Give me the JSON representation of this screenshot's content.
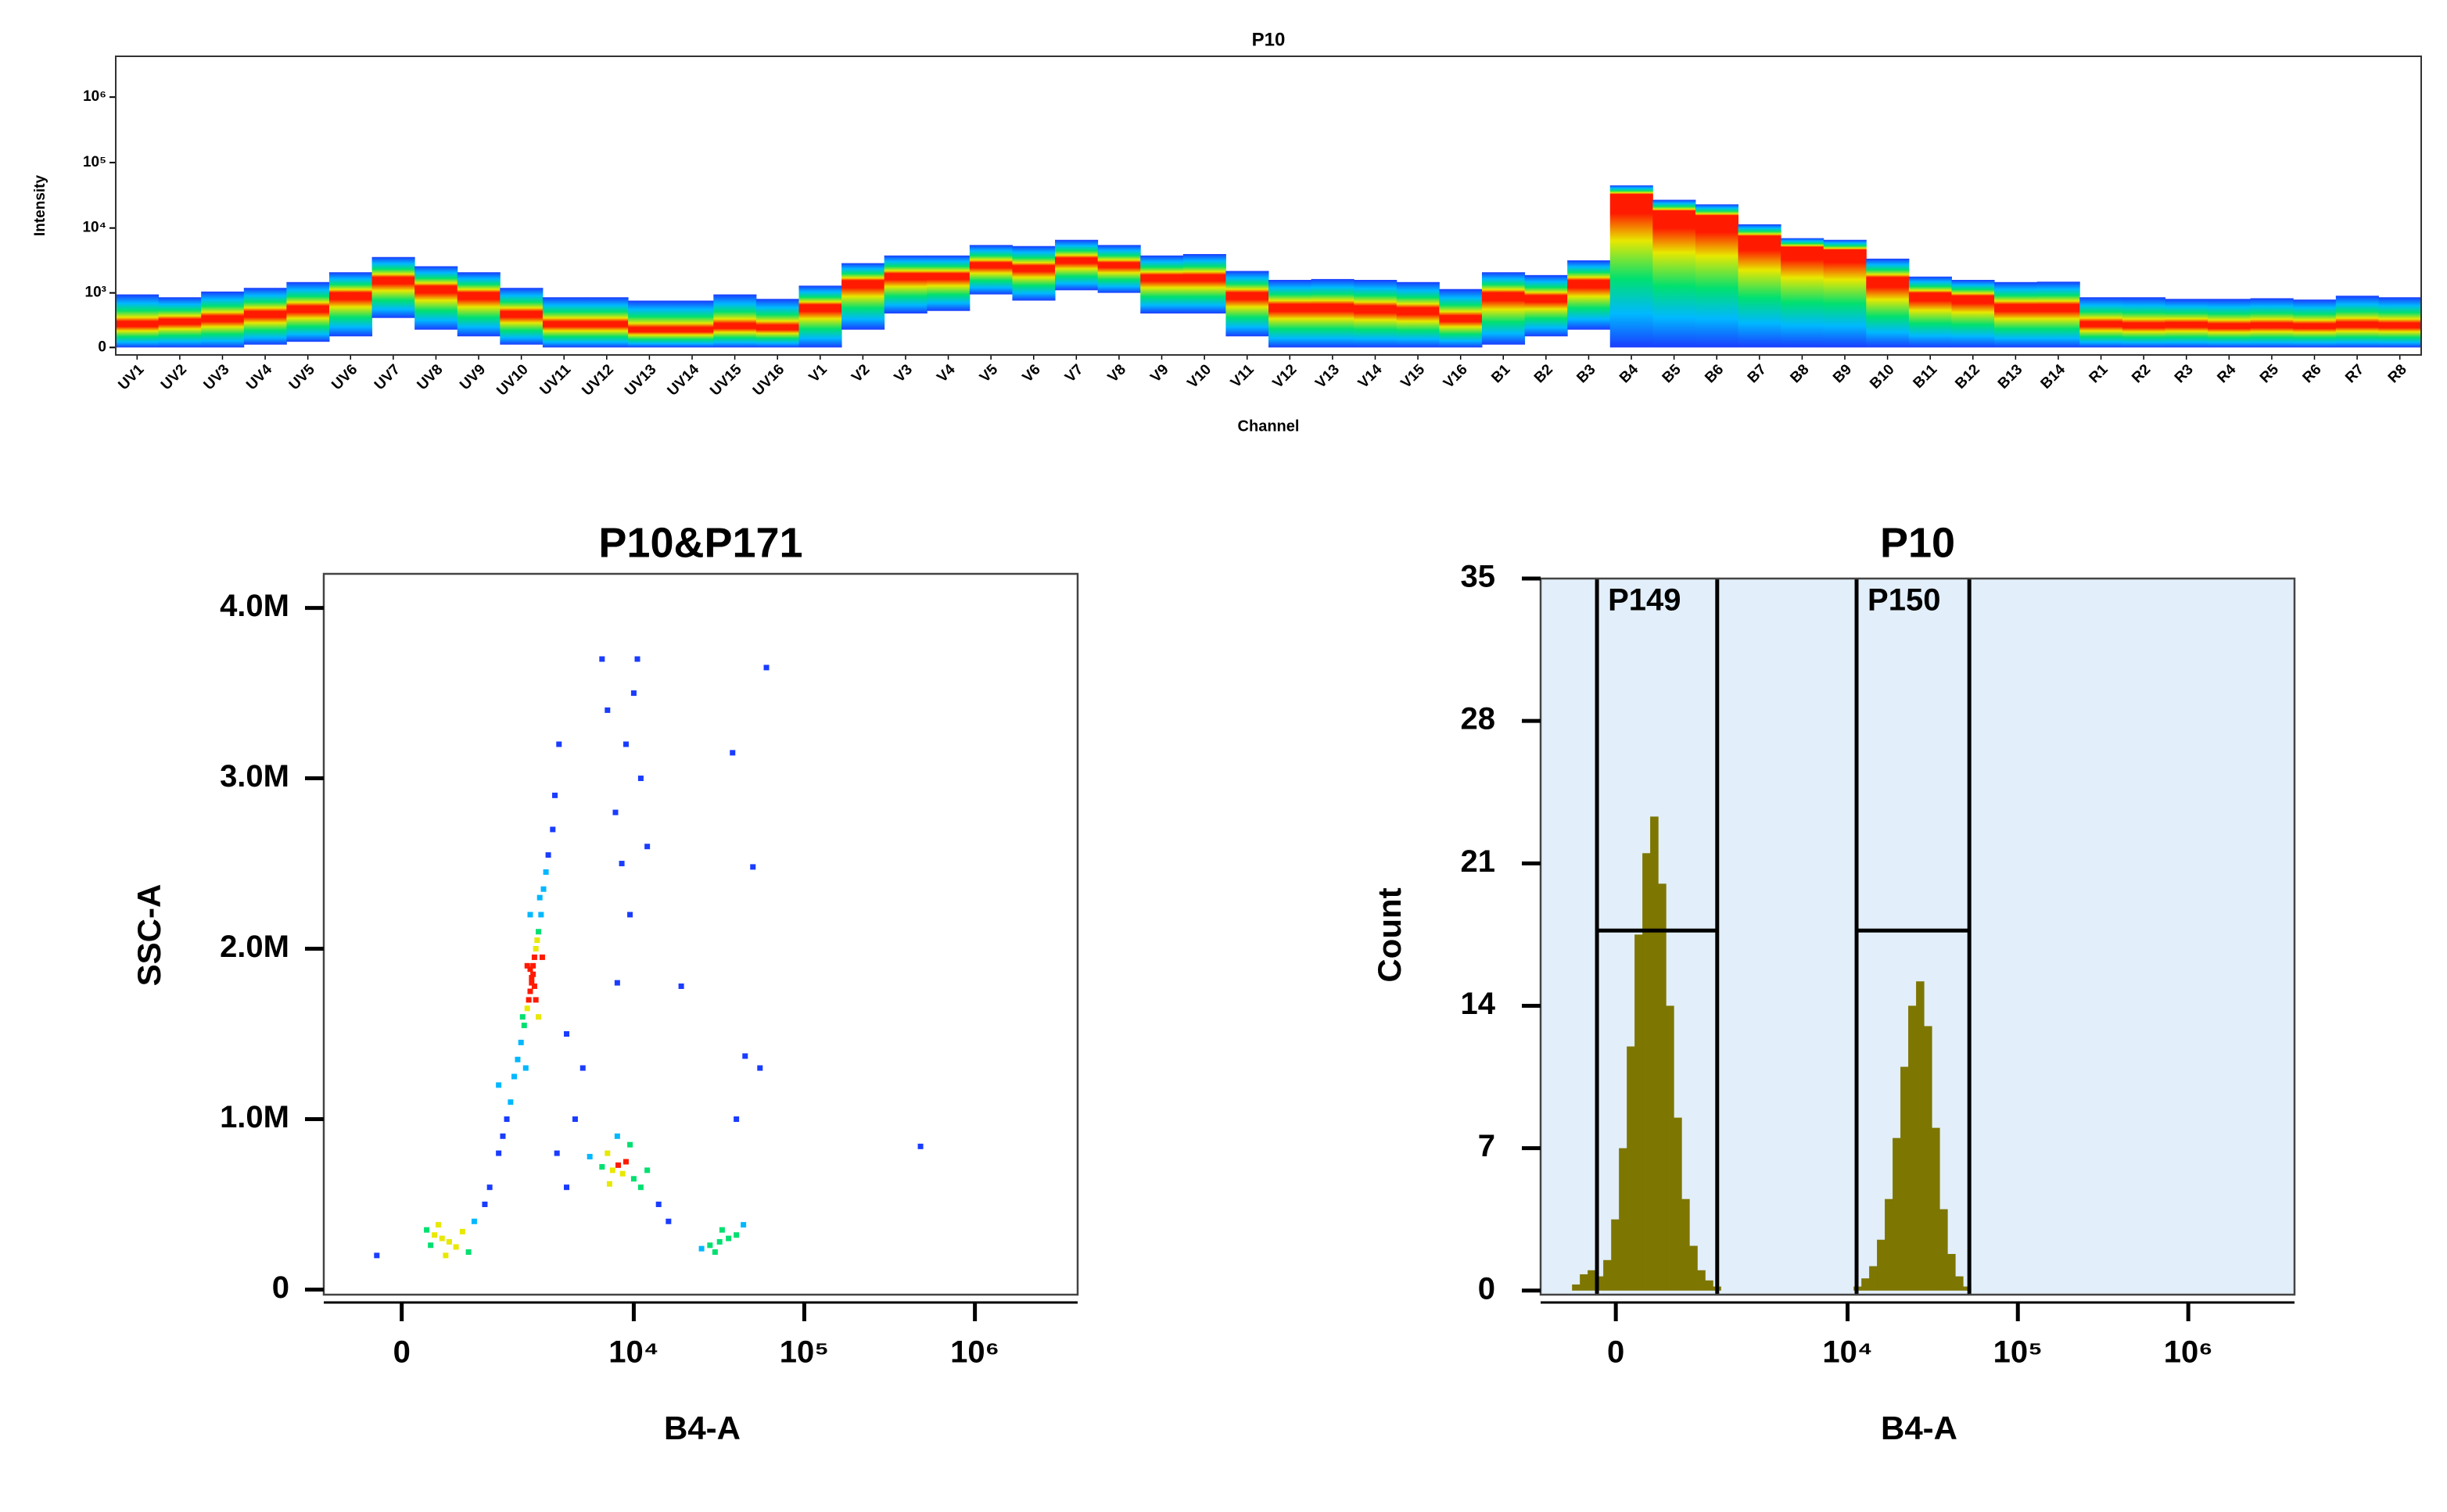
{
  "chart_data": [
    {
      "type": "spectrum",
      "title": "P10",
      "x_label": "Channel",
      "y_label": "Intensity",
      "categories": [
        "UV1",
        "UV2",
        "UV3",
        "UV4",
        "UV5",
        "UV6",
        "UV7",
        "UV8",
        "UV9",
        "UV10",
        "UV11",
        "UV12",
        "UV13",
        "UV14",
        "UV15",
        "UV16",
        "V1",
        "V2",
        "V3",
        "V4",
        "V5",
        "V6",
        "V7",
        "V8",
        "V9",
        "V10",
        "V11",
        "V12",
        "V13",
        "V14",
        "V15",
        "V16",
        "B1",
        "B2",
        "B3",
        "B4",
        "B5",
        "B6",
        "B7",
        "B8",
        "B9",
        "B10",
        "B11",
        "B12",
        "B13",
        "B14",
        "R1",
        "R2",
        "R3",
        "R4",
        "R5",
        "R6",
        "R7",
        "R8"
      ],
      "upper": [
        945,
        850,
        1050,
        1200,
        1480,
        2100,
        3600,
        2600,
        2100,
        1200,
        850,
        850,
        750,
        750,
        945,
        800,
        1300,
        2900,
        3800,
        3800,
        5500,
        5300,
        6600,
        5500,
        3800,
        4000,
        2200,
        1600,
        1650,
        1600,
        1480,
        1150,
        2100,
        1900,
        3200,
        44800,
        27000,
        23000,
        11400,
        7000,
        6600,
        3400,
        1800,
        1600,
        1480,
        1500,
        850,
        850,
        800,
        800,
        820,
        780,
        900,
        850
      ],
      "center": [
        280,
        320,
        370,
        450,
        560,
        945,
        1650,
        1200,
        950,
        450,
        280,
        280,
        200,
        200,
        250,
        230,
        600,
        1480,
        1900,
        1900,
        2800,
        2500,
        3300,
        2800,
        1800,
        1800,
        945,
        600,
        600,
        560,
        520,
        370,
        945,
        850,
        1480,
        32000,
        17700,
        15000,
        7300,
        5000,
        4500,
        1650,
        945,
        850,
        600,
        600,
        280,
        260,
        270,
        250,
        260,
        250,
        270,
        260
      ],
      "lower": [
        0,
        0,
        0,
        30,
        60,
        120,
        370,
        200,
        120,
        30,
        0,
        0,
        0,
        0,
        0,
        0,
        0,
        200,
        450,
        500,
        945,
        750,
        1100,
        1000,
        450,
        450,
        120,
        0,
        0,
        0,
        0,
        0,
        30,
        120,
        200,
        0,
        0,
        0,
        0,
        0,
        0,
        0,
        0,
        0,
        0,
        0,
        0,
        0,
        0,
        0,
        0,
        0,
        0,
        0
      ],
      "yscale": "biexponential",
      "ylim": [
        -80,
        4200000
      ],
      "yticks": [
        0,
        {
          "value": 1000,
          "label": "10³"
        },
        {
          "value": 10000,
          "label": "10⁴"
        },
        {
          "value": 100000,
          "label": "10⁵"
        },
        {
          "value": 1000000,
          "label": "10⁶"
        }
      ]
    },
    {
      "type": "scatter",
      "title": "P10&P171",
      "x_label": "B4-A",
      "y_label": "SSC-A",
      "x": [
        2450,
        2500,
        2400,
        2600,
        2300,
        2550,
        2350,
        2700,
        2200,
        2650,
        2450,
        2500,
        2400,
        2550,
        2100,
        2800,
        2000,
        2900,
        1900,
        3000,
        1800,
        3100,
        2300,
        2600,
        2750,
        2150,
        1700,
        3300,
        2250,
        2850,
        1600,
        3400,
        3600,
        1500,
        2400,
        2700,
        7800,
        9000,
        10000,
        8500,
        11000,
        9500,
        7000,
        10500,
        8000,
        12000,
        6500,
        8100,
        7500,
        9000,
        8600,
        7000,
        10000,
        6500,
        9500,
        11000,
        5500,
        12000,
        8000,
        7200,
        500,
        600,
        400,
        700,
        350,
        800,
        300,
        900,
        -300,
        1000,
        550,
        450,
        31900,
        28000,
        36000,
        40000,
        25000,
        33000,
        44000,
        30000,
        1300,
        1200,
        1500,
        4000,
        4500,
        3500,
        5000,
        4000,
        14000,
        16000,
        60000,
        38000,
        50000,
        19000,
        45000,
        55000,
        40000,
        480000
      ],
      "y": [
        1830000,
        1900000,
        1750000,
        2000000,
        1650000,
        1950000,
        1700000,
        2100000,
        1550000,
        2050000,
        1800000,
        1850000,
        1880000,
        1780000,
        1450000,
        2200000,
        1350000,
        2350000,
        1250000,
        2450000,
        1100000,
        2550000,
        1900000,
        1700000,
        2300000,
        1600000,
        1000000,
        2700000,
        1300000,
        1950000,
        900000,
        2900000,
        3200000,
        800000,
        2200000,
        1600000,
        2800000,
        3200000,
        3500000,
        2500000,
        3000000,
        2200000,
        3400000,
        3700000,
        1800000,
        2600000,
        3700000,
        730000,
        700000,
        750000,
        680000,
        800000,
        650000,
        720000,
        850000,
        600000,
        780000,
        700000,
        900000,
        620000,
        300000,
        280000,
        320000,
        250000,
        260000,
        340000,
        350000,
        220000,
        200000,
        400000,
        200000,
        380000,
        280000,
        260000,
        300000,
        320000,
        240000,
        350000,
        380000,
        220000,
        600000,
        500000,
        1200000,
        1500000,
        1000000,
        800000,
        1300000,
        600000,
        500000,
        400000,
        3650000,
        3150000,
        2480000,
        1780000,
        1370000,
        1300000,
        1000000,
        840000
      ],
      "xscale": "biexponential",
      "xlim": [
        -1100,
        4000000
      ],
      "ylim": [
        -30000,
        4200000
      ],
      "xticks": [
        0,
        {
          "value": 10000,
          "label": "10⁴"
        },
        {
          "value": 100000,
          "label": "10⁵"
        },
        {
          "value": 1000000,
          "label": "10⁶"
        }
      ],
      "yticks": [
        0,
        {
          "value": 1000000,
          "label": "1.0M"
        },
        {
          "value": 2000000,
          "label": "2.0M"
        },
        {
          "value": 3000000,
          "label": "3.0M"
        },
        {
          "value": 4000000,
          "label": "4.0M"
        }
      ]
    },
    {
      "type": "histogram",
      "title": "P10",
      "x_label": "B4-A",
      "y_label": "Count",
      "bins": [
        -548,
        -442,
        -341,
        -243,
        -149,
        -55,
        37,
        130,
        224,
        321,
        421,
        527,
        638,
        756,
        883,
        1019,
        1169,
        1330,
        1506,
        1700,
        10850,
        12060,
        13400,
        14890,
        16550,
        18400,
        20450,
        22730,
        25270,
        28090,
        31220,
        34700,
        38580,
        42880,
        47650,
        52960
      ],
      "values": [
        0.3,
        0.8,
        1.0,
        0.7,
        1.5,
        3.5,
        7,
        12,
        17.5,
        21.5,
        23.3,
        20,
        14,
        8.5,
        4.5,
        2.2,
        1.0,
        0.5,
        0.2,
        0,
        0.2,
        0.6,
        1.2,
        2.5,
        4.5,
        7.5,
        11,
        14,
        15.2,
        13,
        8,
        4,
        1.8,
        0.7,
        0.2
      ],
      "color": "#7d7600",
      "background": "#e2eef9",
      "xscale": "biexponential",
      "xlim": [
        -1050,
        4200000
      ],
      "ylim": [
        -0.2,
        35
      ],
      "xticks": [
        0,
        {
          "value": 10000,
          "label": "10⁴"
        },
        {
          "value": 100000,
          "label": "10⁵"
        },
        {
          "value": 1000000,
          "label": "10⁶"
        }
      ],
      "yticks": [
        0,
        7,
        14,
        21,
        28,
        35
      ],
      "gates": [
        {
          "label": "P149",
          "x": [
            -225,
            1610
          ],
          "y": 17.7
        },
        {
          "label": "P150",
          "x": [
            11300,
            51900
          ],
          "y": 17.7
        }
      ]
    }
  ]
}
